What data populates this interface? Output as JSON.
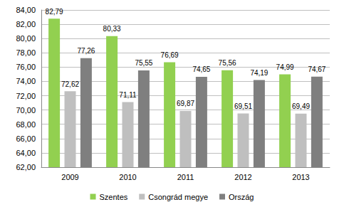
{
  "chart_data": {
    "type": "bar",
    "categories": [
      "2009",
      "2010",
      "2011",
      "2012",
      "2013"
    ],
    "series": [
      {
        "name": "Szentes",
        "color": "#92d050",
        "values": [
          82.79,
          80.33,
          76.69,
          75.56,
          74.99
        ],
        "value_labels": [
          "82,79",
          "80,33",
          "76,69",
          "75,56",
          "74,99"
        ]
      },
      {
        "name": "Csongrád megye",
        "color": "#bfbfbf",
        "values": [
          72.62,
          71.11,
          69.87,
          69.51,
          69.49
        ],
        "value_labels": [
          "72,62",
          "71,11",
          "69,87",
          "69,51",
          "69,49"
        ]
      },
      {
        "name": "Ország",
        "color": "#7f7f7f",
        "values": [
          77.26,
          75.55,
          74.65,
          74.19,
          74.67
        ],
        "value_labels": [
          "77,26",
          "75,55",
          "74,65",
          "74,19",
          "74,67"
        ]
      }
    ],
    "ylim": [
      62,
      84
    ],
    "yticks": [
      {
        "value": 62,
        "label": "62,00"
      },
      {
        "value": 64,
        "label": "64,00"
      },
      {
        "value": 66,
        "label": "66,00"
      },
      {
        "value": 68,
        "label": "68,00"
      },
      {
        "value": 70,
        "label": "70,00"
      },
      {
        "value": 72,
        "label": "72,00"
      },
      {
        "value": 74,
        "label": "74,00"
      },
      {
        "value": 76,
        "label": "76,00"
      },
      {
        "value": 78,
        "label": "78,00"
      },
      {
        "value": 80,
        "label": "80,00"
      },
      {
        "value": 82,
        "label": "82,00"
      },
      {
        "value": 84,
        "label": "84,00"
      }
    ],
    "grid": true,
    "legend": "bottom",
    "data_labels": true
  }
}
